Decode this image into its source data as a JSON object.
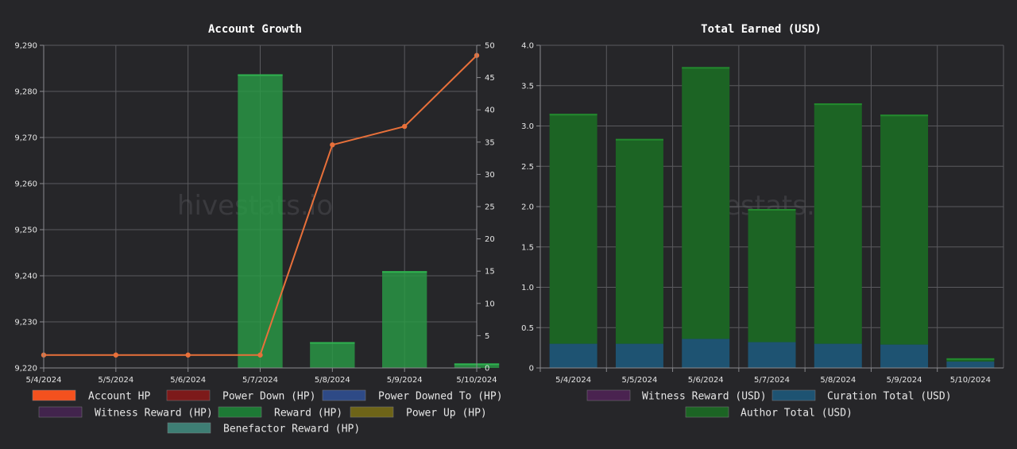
{
  "watermark": "hivestats.io",
  "chart_data": [
    {
      "type": "bar",
      "title": "Account Growth",
      "categories": [
        "5/4/2024",
        "5/5/2024",
        "5/6/2024",
        "5/7/2024",
        "5/8/2024",
        "5/9/2024",
        "5/10/2024"
      ],
      "y_left": {
        "ticks": [
          "9,220",
          "9,230",
          "9,240",
          "9,250",
          "9,260",
          "9,270",
          "9,280",
          "9,290"
        ],
        "ylim": [
          9220,
          9290
        ]
      },
      "y_right": {
        "ticks": [
          "0",
          "5",
          "10",
          "15",
          "20",
          "25",
          "30",
          "35",
          "40",
          "45",
          "50"
        ],
        "ylim": [
          0,
          50
        ]
      },
      "series": [
        {
          "name": "Account HP",
          "type": "line",
          "axis": "left",
          "color": "#e8703a",
          "values": [
            9222.8,
            9222.8,
            9222.8,
            9222.8,
            9268.4,
            9272.4,
            9287.8
          ]
        },
        {
          "name": "Reward (HP)",
          "type": "bar",
          "axis": "right",
          "color": "#2a9a45",
          "values": [
            0,
            0,
            0,
            45.5,
            4.0,
            15.0,
            0.7
          ]
        }
      ],
      "legend": [
        {
          "label": "Account HP",
          "color": "#f4511e"
        },
        {
          "label": "Power Down (HP)",
          "color": "#7d1a1a"
        },
        {
          "label": "Power Downed To (HP)",
          "color": "#2e4a86"
        },
        {
          "label": "Witness Reward (HP)",
          "color": "#42244d"
        },
        {
          "label": "Reward (HP)",
          "color": "#1d7a35"
        },
        {
          "label": "Power Up (HP)",
          "color": "#6e6418"
        },
        {
          "label": "Benefactor Reward (HP)",
          "color": "#3e7e74"
        }
      ],
      "grid": true,
      "legend_position": "bottom"
    },
    {
      "type": "bar",
      "title": "Total Earned (USD)",
      "stacked": true,
      "categories": [
        "5/4/2024",
        "5/5/2024",
        "5/6/2024",
        "5/7/2024",
        "5/8/2024",
        "5/9/2024",
        "5/10/2024"
      ],
      "y": {
        "ticks": [
          "0",
          "0.5",
          "1.0",
          "1.5",
          "2.0",
          "2.5",
          "3.0",
          "3.5",
          "4.0"
        ],
        "ylim": [
          0,
          4.0
        ]
      },
      "series": [
        {
          "name": "Witness Reward (USD)",
          "color": "#4a2350",
          "values": [
            0,
            0,
            0,
            0,
            0,
            0,
            0
          ]
        },
        {
          "name": "Curation Total (USD)",
          "color": "#1e5372",
          "values": [
            0.3,
            0.3,
            0.36,
            0.32,
            0.3,
            0.29,
            0.08
          ]
        },
        {
          "name": "Author Total (USD)",
          "color": "#1c6424",
          "values": [
            2.85,
            2.54,
            3.37,
            1.65,
            2.98,
            2.85,
            0.04
          ]
        }
      ],
      "legend": [
        {
          "label": "Witness Reward (USD)",
          "color": "#4a2350"
        },
        {
          "label": "Curation Total (USD)",
          "color": "#1e5372"
        },
        {
          "label": "Author Total (USD)",
          "color": "#1c6424"
        }
      ],
      "grid": true,
      "legend_position": "bottom"
    }
  ]
}
